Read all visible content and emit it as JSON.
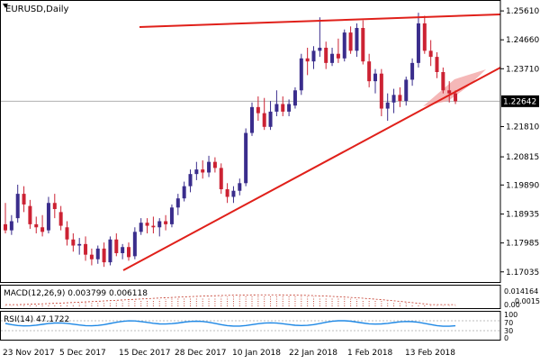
{
  "title": "EURUSD,Daily",
  "colors": {
    "bull": "#3a2d8c",
    "bear": "#cc2233",
    "trend": "#e0201a",
    "channel_fill": "#f2a0a0",
    "price_badge_bg": "#000000",
    "price_badge_text": "#ffffff",
    "grid": "#c8c8c8",
    "axis": "#000000",
    "macd": "#c03020",
    "rsi": "#1e88e5"
  },
  "price_axis": {
    "ticks": [
      "1.25610",
      "1.24660",
      "1.23710",
      "1.21810",
      "1.20815",
      "1.19890",
      "1.18935",
      "1.17985",
      "1.17035"
    ],
    "current_price": "1.22642"
  },
  "macd_panel": {
    "label": "MACD(12,26,9) 0.003799 0.006118",
    "ticks": [
      "0.014164",
      "0.001545",
      "0.00"
    ]
  },
  "rsi_panel": {
    "label": "RSI(14) 47.1722",
    "ticks": [
      "100",
      "70",
      "30",
      "0"
    ]
  },
  "time_axis": {
    "labels": [
      "23 Nov 2017",
      "5 Dec 2017",
      "15 Dec 2017",
      "28 Dec 2017",
      "10 Jan 2018",
      "22 Jan 2018",
      "1 Feb 2018",
      "13 Feb 2018"
    ]
  },
  "chart_data": {
    "type": "candlestick",
    "symbol": "EURUSD",
    "timeframe": "Daily",
    "ylim": [
      1.1685,
      1.2585
    ],
    "candles": [
      [
        1.186,
        1.193,
        1.183,
        1.184
      ],
      [
        1.184,
        1.189,
        1.1825,
        1.187
      ],
      [
        1.188,
        1.199,
        1.1865,
        1.196
      ],
      [
        1.196,
        1.1985,
        1.19,
        1.1925
      ],
      [
        1.192,
        1.194,
        1.1845,
        1.186
      ],
      [
        1.186,
        1.1885,
        1.183,
        1.185
      ],
      [
        1.185,
        1.189,
        1.182,
        1.1835
      ],
      [
        1.184,
        1.195,
        1.183,
        1.193
      ],
      [
        1.193,
        1.196,
        1.188,
        1.191
      ],
      [
        1.19,
        1.192,
        1.184,
        1.1855
      ],
      [
        1.185,
        1.187,
        1.179,
        1.181
      ],
      [
        1.181,
        1.183,
        1.177,
        1.179
      ],
      [
        1.179,
        1.1815,
        1.176,
        1.1795
      ],
      [
        1.1795,
        1.182,
        1.174,
        1.176
      ],
      [
        1.176,
        1.178,
        1.1725,
        1.1745
      ],
      [
        1.1745,
        1.179,
        1.173,
        1.178
      ],
      [
        1.178,
        1.18,
        1.172,
        1.1735
      ],
      [
        1.1735,
        1.182,
        1.1725,
        1.181
      ],
      [
        1.181,
        1.183,
        1.1755,
        1.1765
      ],
      [
        1.1765,
        1.1795,
        1.1745,
        1.1785
      ],
      [
        1.1785,
        1.18,
        1.174,
        1.1752
      ],
      [
        1.1755,
        1.185,
        1.1745,
        1.1835
      ],
      [
        1.1835,
        1.188,
        1.1825,
        1.1865
      ],
      [
        1.1865,
        1.188,
        1.183,
        1.1855
      ],
      [
        1.1855,
        1.1885,
        1.183,
        1.185
      ],
      [
        1.185,
        1.188,
        1.182,
        1.187
      ],
      [
        1.187,
        1.189,
        1.184,
        1.186
      ],
      [
        1.186,
        1.1925,
        1.185,
        1.1915
      ],
      [
        1.1915,
        1.196,
        1.189,
        1.1945
      ],
      [
        1.1945,
        1.2,
        1.1935,
        1.1985
      ],
      [
        1.1985,
        1.204,
        1.1965,
        1.2025
      ],
      [
        1.2025,
        1.2065,
        1.2005,
        1.204
      ],
      [
        1.204,
        1.207,
        1.201,
        1.203
      ],
      [
        1.203,
        1.2085,
        1.2015,
        1.2065
      ],
      [
        1.2065,
        1.208,
        1.203,
        1.2045
      ],
      [
        1.2045,
        1.206,
        1.196,
        1.1975
      ],
      [
        1.1975,
        1.1995,
        1.193,
        1.195
      ],
      [
        1.195,
        1.1985,
        1.193,
        1.197
      ],
      [
        1.197,
        1.201,
        1.1955,
        1.1995
      ],
      [
        1.1995,
        1.2175,
        1.1985,
        1.216
      ],
      [
        1.216,
        1.226,
        1.215,
        1.2245
      ],
      [
        1.2245,
        1.228,
        1.22,
        1.2225
      ],
      [
        1.2225,
        1.2275,
        1.217,
        1.218
      ],
      [
        1.218,
        1.2265,
        1.217,
        1.223
      ],
      [
        1.223,
        1.23,
        1.2215,
        1.2255
      ],
      [
        1.2255,
        1.228,
        1.2215,
        1.223
      ],
      [
        1.223,
        1.227,
        1.2215,
        1.2255
      ],
      [
        1.225,
        1.231,
        1.224,
        1.23
      ],
      [
        1.23,
        1.242,
        1.2285,
        1.2405
      ],
      [
        1.2405,
        1.244,
        1.235,
        1.2395
      ],
      [
        1.2395,
        1.2445,
        1.237,
        1.243
      ],
      [
        1.243,
        1.254,
        1.241,
        1.244
      ],
      [
        1.244,
        1.246,
        1.237,
        1.239
      ],
      [
        1.239,
        1.244,
        1.238,
        1.242
      ],
      [
        1.242,
        1.247,
        1.239,
        1.2405
      ],
      [
        1.2405,
        1.25,
        1.2395,
        1.249
      ],
      [
        1.249,
        1.251,
        1.242,
        1.243
      ],
      [
        1.243,
        1.252,
        1.241,
        1.2505
      ],
      [
        1.2505,
        1.253,
        1.2385,
        1.2395
      ],
      [
        1.2395,
        1.242,
        1.231,
        1.233
      ],
      [
        1.233,
        1.237,
        1.229,
        1.2355
      ],
      [
        1.2355,
        1.237,
        1.2215,
        1.224
      ],
      [
        1.224,
        1.229,
        1.22,
        1.226
      ],
      [
        1.226,
        1.2305,
        1.2225,
        1.2285
      ],
      [
        1.2285,
        1.231,
        1.2245,
        1.2265
      ],
      [
        1.2265,
        1.2345,
        1.225,
        1.2335
      ],
      [
        1.2335,
        1.2405,
        1.2315,
        1.239
      ],
      [
        1.239,
        1.2555,
        1.2375,
        1.252
      ],
      [
        1.252,
        1.2545,
        1.242,
        1.243
      ],
      [
        1.243,
        1.2465,
        1.238,
        1.241
      ],
      [
        1.241,
        1.2425,
        1.234,
        1.236
      ],
      [
        1.236,
        1.2375,
        1.229,
        1.23
      ],
      [
        1.23,
        1.233,
        1.226,
        1.229
      ],
      [
        1.229,
        1.23,
        1.2255,
        1.2264
      ]
    ]
  }
}
